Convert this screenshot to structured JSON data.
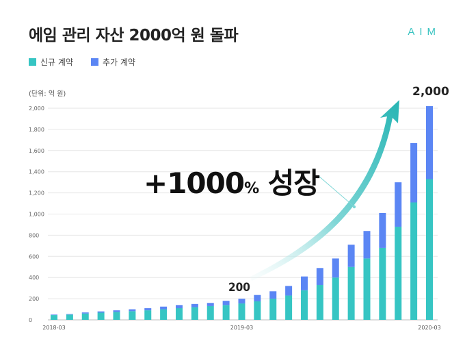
{
  "header": {
    "title": "에임 관리 자산 2000억 원 돌파",
    "brand": "AIM"
  },
  "legend": [
    {
      "label": "신규 계약",
      "color": "#36c5c3"
    },
    {
      "label": "추가 계약",
      "color": "#5b86f4"
    }
  ],
  "unit_label": "(단위: 억 원)",
  "annotations": {
    "growth_number": "+1000",
    "growth_pct": "%",
    "growth_word": "성장",
    "start_value": "200",
    "end_value": "2,000"
  },
  "chart_data": {
    "type": "bar",
    "stacked": true,
    "ylim": [
      0,
      2000
    ],
    "yticks": [
      "0",
      "200",
      "400",
      "600",
      "800",
      "1,000",
      "1,200",
      "1,400",
      "1,600",
      "1,800",
      "2,000"
    ],
    "ytick_values": [
      0,
      200,
      400,
      600,
      800,
      1000,
      1200,
      1400,
      1600,
      1800,
      2000
    ],
    "xtick_labels": [
      {
        "index": 0,
        "label": "2018-03"
      },
      {
        "index": 12,
        "label": "2019-03"
      },
      {
        "index": 24,
        "label": "2020-03"
      }
    ],
    "grid": true,
    "series": [
      {
        "name": "신규 계약",
        "color": "#36c5c3",
        "values": [
          45,
          50,
          60,
          68,
          75,
          82,
          90,
          100,
          110,
          120,
          130,
          140,
          155,
          175,
          200,
          230,
          280,
          330,
          400,
          500,
          580,
          680,
          880,
          1110,
          1330
        ]
      },
      {
        "name": "추가 계약",
        "color": "#5b86f4",
        "values": [
          5,
          5,
          10,
          12,
          15,
          18,
          20,
          25,
          30,
          30,
          30,
          40,
          45,
          60,
          70,
          90,
          130,
          160,
          180,
          210,
          260,
          330,
          420,
          560,
          690
        ]
      }
    ]
  }
}
